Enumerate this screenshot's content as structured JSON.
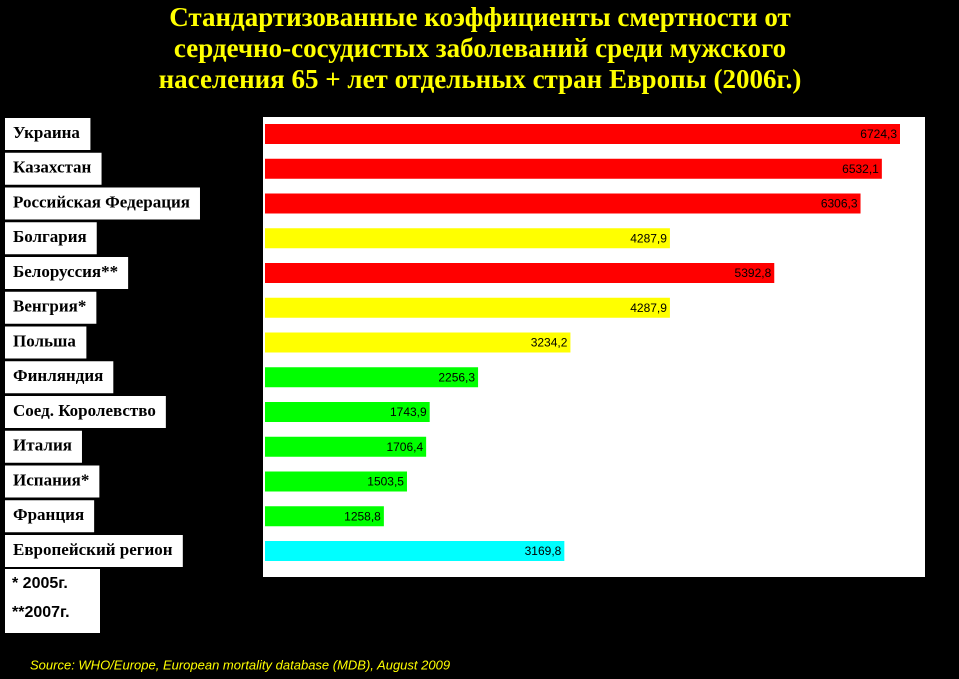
{
  "chart_data": {
    "type": "bar",
    "title": [
      "Стандартизованные коэффициенты смертности от",
      "сердечно-сосудистых заболеваний среди  мужского",
      "населения 65 + лет отдельных стран Европы (2006г.)"
    ],
    "categories": [
      "Украина",
      "Казахстан",
      "Российская Федерация",
      "Болгария",
      "Белоруссия**",
      "Венгрия*",
      "Польша",
      "Финляндия",
      "Соед. Королевство",
      "Италия",
      "Испания*",
      "Франция",
      "Европейский регион"
    ],
    "values": [
      6724.3,
      6532.1,
      6306.3,
      4287.9,
      5392.8,
      4287.9,
      3234.2,
      2256.3,
      1743.9,
      1706.4,
      1503.5,
      1258.8,
      3169.8
    ],
    "value_labels": [
      "6724,3",
      "6532,1",
      "6306,3",
      "4287,9",
      "5392,8",
      "4287,9",
      "3234,2",
      "2256,3",
      "1743,9",
      "1706,4",
      "1503,5",
      "1258,8",
      "3169,8"
    ],
    "colors": [
      "#ff0000",
      "#ff0000",
      "#ff0000",
      "#ffff00",
      "#ff0000",
      "#ffff00",
      "#ffff00",
      "#00ff00",
      "#00ff00",
      "#00ff00",
      "#00ff00",
      "#00ff00",
      "#00ffff"
    ],
    "footnotes": [
      "* 2005г.",
      "**2007г."
    ],
    "source": "Source: WHO/Europe, European mortality database (MDB), August  2009"
  }
}
